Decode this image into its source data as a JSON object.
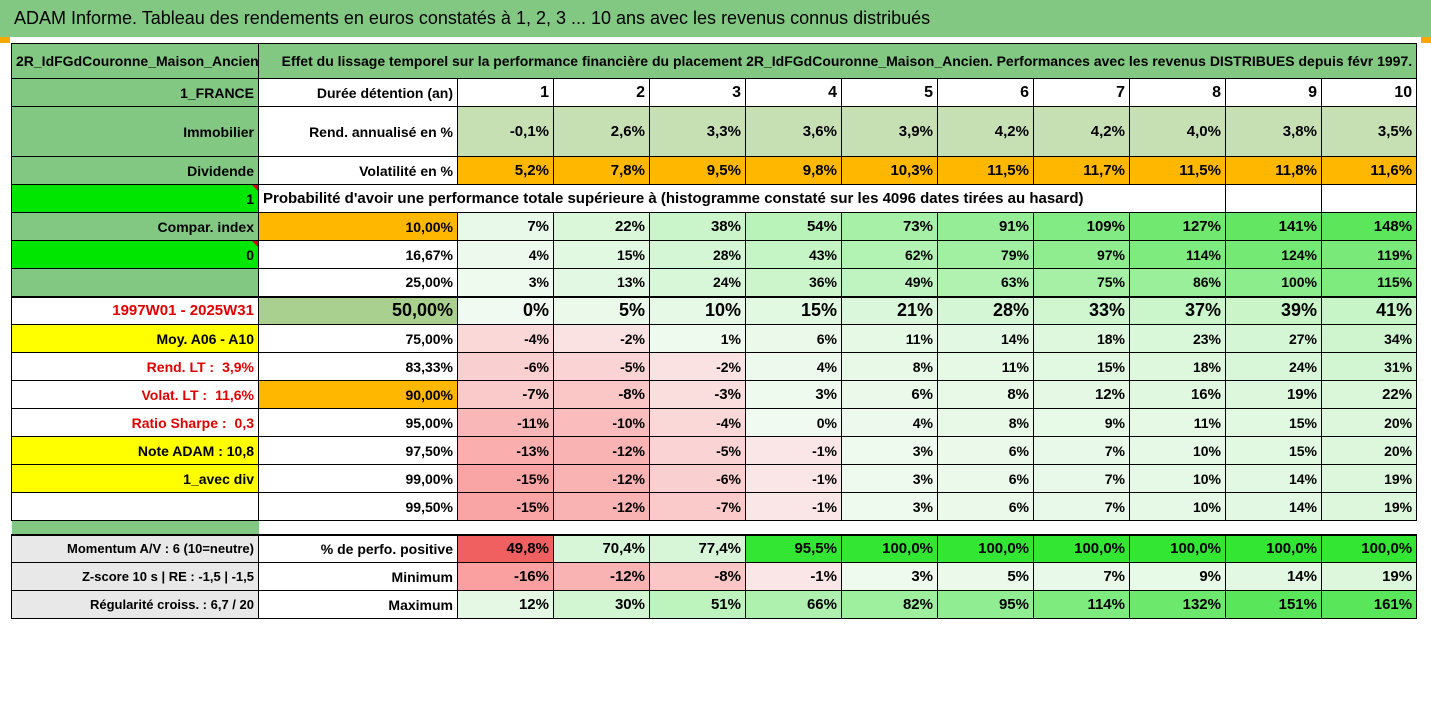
{
  "banner": "ADAM Informe. Tableau des rendements en euros constatés à 1, 2, 3 ... 10 ans avec les revenus connus distribués",
  "fund_name": "2R_IdFGdCouronne_Maison_Ancien",
  "title": "Effet du lissage temporel sur la performance financière du placement 2R_IdFGdCouronne_Maison_Ancien. Performances avec les revenus DISTRIBUES depuis févr 1997.",
  "left": {
    "country": "1_FRANCE",
    "category": "Immobilier",
    "dividend": "Dividende",
    "one": "1",
    "compar": "Compar. index",
    "zero": "0",
    "period": "1997W01 - 2025W31",
    "moy": "Moy. A06 - A10",
    "rend_label": "Rend. LT :",
    "rend_value": "3,9%",
    "volat_label": "Volat. LT :",
    "volat_value": "11,6%",
    "sharpe_label": "Ratio Sharpe :",
    "sharpe_value": "0,3",
    "note": "Note ADAM : 10,8",
    "avec_div": "1_avec div",
    "momentum": "Momentum A/V : 6 (10=neutre)",
    "zscore": "Z-score 10 s  |  RE : -1,5  |  -1,5",
    "regularite": "Régularité croiss. : 6,7 / 20"
  },
  "row_labels": {
    "duree": "Durée détention (an)",
    "rend": "Rend. annualisé en %",
    "volat": "Volatilité en %",
    "proba": "Probabilité d'avoir une performance totale supérieure à (histogramme constaté sur les 4096 dates tirées au hasard)",
    "pct_positive": "% de perfo. positive",
    "minimum": "Minimum",
    "maximum": "Maximum"
  },
  "years": [
    "1",
    "2",
    "3",
    "4",
    "5",
    "6",
    "7",
    "8",
    "9",
    "10"
  ],
  "rend": [
    "-0,1%",
    "2,6%",
    "3,3%",
    "3,6%",
    "3,9%",
    "4,2%",
    "4,2%",
    "4,0%",
    "3,8%",
    "3,5%"
  ],
  "volat": [
    "5,2%",
    "7,8%",
    "9,5%",
    "9,8%",
    "10,3%",
    "11,5%",
    "11,7%",
    "11,5%",
    "11,8%",
    "11,6%"
  ],
  "proba_rows": [
    {
      "p": "10,00%",
      "v": [
        "7%",
        "22%",
        "38%",
        "54%",
        "73%",
        "91%",
        "109%",
        "127%",
        "141%",
        "148%"
      ]
    },
    {
      "p": "16,67%",
      "v": [
        "4%",
        "15%",
        "28%",
        "43%",
        "62%",
        "79%",
        "97%",
        "114%",
        "124%",
        "119%"
      ]
    },
    {
      "p": "25,00%",
      "v": [
        "3%",
        "13%",
        "24%",
        "36%",
        "49%",
        "63%",
        "75%",
        "86%",
        "100%",
        "115%"
      ]
    },
    {
      "p": "50,00%",
      "v": [
        "0%",
        "5%",
        "10%",
        "15%",
        "21%",
        "28%",
        "33%",
        "37%",
        "39%",
        "41%"
      ]
    },
    {
      "p": "75,00%",
      "v": [
        "-4%",
        "-2%",
        "1%",
        "6%",
        "11%",
        "14%",
        "18%",
        "23%",
        "27%",
        "34%"
      ]
    },
    {
      "p": "83,33%",
      "v": [
        "-6%",
        "-5%",
        "-2%",
        "4%",
        "8%",
        "11%",
        "15%",
        "18%",
        "24%",
        "31%"
      ]
    },
    {
      "p": "90,00%",
      "v": [
        "-7%",
        "-8%",
        "-3%",
        "3%",
        "6%",
        "8%",
        "12%",
        "16%",
        "19%",
        "22%"
      ]
    },
    {
      "p": "95,00%",
      "v": [
        "-11%",
        "-10%",
        "-4%",
        "0%",
        "4%",
        "8%",
        "9%",
        "11%",
        "15%",
        "20%"
      ]
    },
    {
      "p": "97,50%",
      "v": [
        "-13%",
        "-12%",
        "-5%",
        "-1%",
        "3%",
        "6%",
        "7%",
        "10%",
        "15%",
        "20%"
      ]
    },
    {
      "p": "99,00%",
      "v": [
        "-15%",
        "-12%",
        "-6%",
        "-1%",
        "3%",
        "6%",
        "7%",
        "10%",
        "14%",
        "19%"
      ]
    },
    {
      "p": "99,50%",
      "v": [
        "-15%",
        "-12%",
        "-7%",
        "-1%",
        "3%",
        "6%",
        "7%",
        "10%",
        "14%",
        "19%"
      ]
    }
  ],
  "pct_positive": [
    "49,8%",
    "70,4%",
    "77,4%",
    "95,5%",
    "100,0%",
    "100,0%",
    "100,0%",
    "100,0%",
    "100,0%",
    "100,0%"
  ],
  "minimum": [
    "-16%",
    "-12%",
    "-8%",
    "-1%",
    "3%",
    "5%",
    "7%",
    "9%",
    "14%",
    "19%"
  ],
  "maximum": [
    "12%",
    "30%",
    "51%",
    "66%",
    "82%",
    "95%",
    "114%",
    "132%",
    "151%",
    "161%"
  ],
  "colors": {
    "header_green": "#82c882",
    "lime": "#00e600",
    "yellow": "#ffff00",
    "orange": "#ffb700",
    "red_text": "#e00000"
  }
}
